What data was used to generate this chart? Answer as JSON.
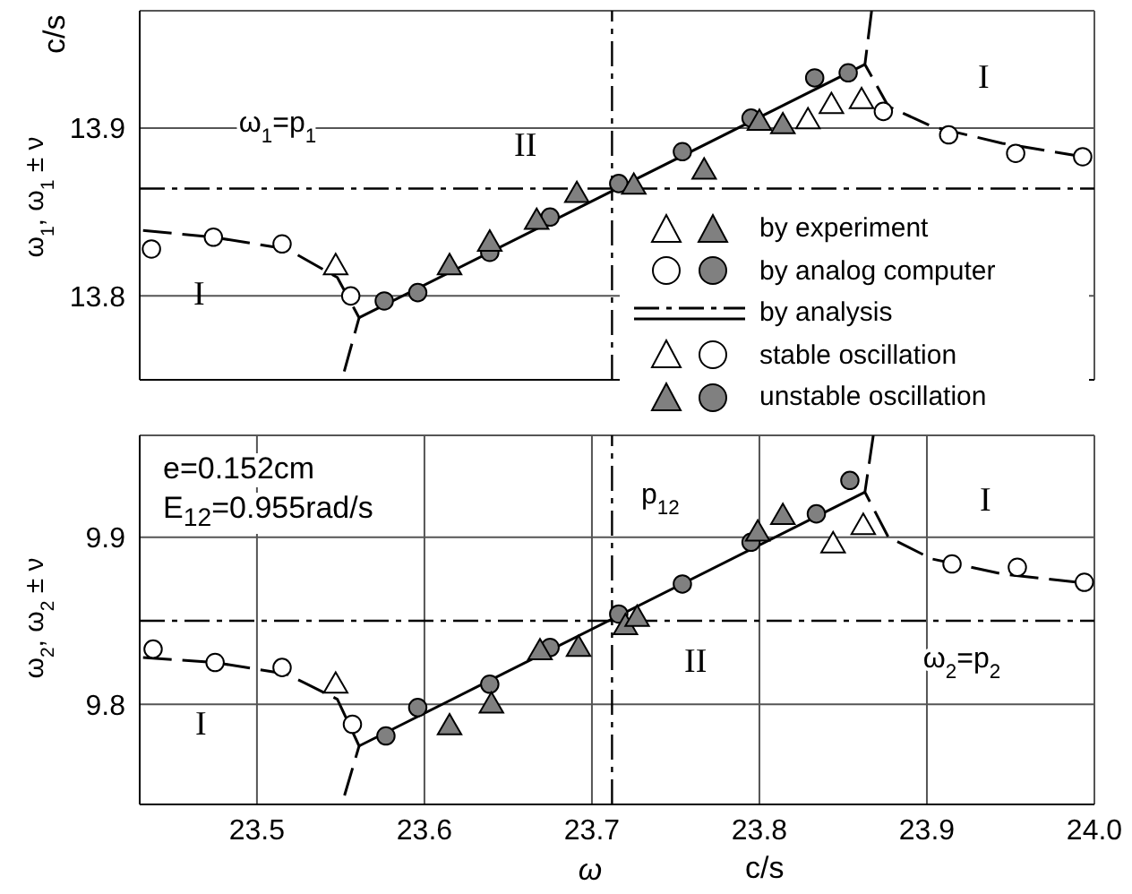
{
  "chart_data": [
    {
      "type": "scatter",
      "ylabel": "ω$_{1}$, ω$_{1}$ ± ν",
      "xlim": [
        23.43,
        24.0
      ],
      "xticks": [
        23.5,
        23.6,
        23.7,
        23.8,
        23.9
      ],
      "ylim": [
        13.75,
        13.97
      ],
      "yticks": [
        13.8,
        13.9
      ],
      "tick_labels": "y",
      "grid": true,
      "ref_lines": [
        {
          "axis": "y",
          "value": 13.864,
          "label": "ω$_{1}$=p$_{1}$",
          "line_style": "dashed"
        },
        {
          "axis": "x",
          "value": 23.712,
          "line_style": "dashed"
        }
      ],
      "annotations": [
        "by experiment",
        "by analog computer",
        "by analysis",
        "stable oscillation",
        "unstable oscillation",
        "c/s",
        "I",
        "II",
        "I"
      ],
      "series": [
        {
          "type": "scatter",
          "marker": "circle",
          "color": "#ffffff",
          "x": [
            23.437,
            23.474,
            23.515,
            23.556,
            23.874,
            23.913,
            23.953,
            23.993
          ],
          "values": [
            13.828,
            13.835,
            13.831,
            13.8,
            13.91,
            13.896,
            13.885,
            13.883
          ]
        },
        {
          "type": "scatter",
          "marker": "circle",
          "color": "#808080",
          "x": [
            23.576,
            23.596,
            23.639,
            23.675,
            23.716,
            23.754,
            23.795,
            23.833,
            23.853
          ],
          "values": [
            13.797,
            13.802,
            13.826,
            13.847,
            13.867,
            13.886,
            13.906,
            13.93,
            13.933
          ]
        },
        {
          "type": "scatter",
          "marker": "triangle",
          "color": "#ffffff",
          "x": [
            23.547,
            23.829,
            23.843,
            23.861
          ],
          "values": [
            13.817,
            13.904,
            13.913,
            13.916
          ]
        },
        {
          "type": "scatter",
          "marker": "triangle",
          "color": "#808080",
          "x": [
            23.615,
            23.639,
            23.667,
            23.691,
            23.725,
            23.767,
            23.8,
            23.814
          ],
          "values": [
            13.817,
            13.831,
            13.844,
            13.86,
            13.865,
            13.874,
            13.903,
            13.901
          ]
        },
        {
          "type": "line",
          "marker": "none",
          "line_style": "solid",
          "color": "#000000",
          "x": [
            23.561,
            23.863
          ],
          "values": [
            13.787,
            13.938
          ]
        },
        {
          "type": "line",
          "marker": "none",
          "line_style": "dashed",
          "color": "#000000",
          "x": [
            23.432,
            23.474,
            23.518,
            23.548,
            23.561,
            23.551
          ],
          "values": [
            13.839,
            13.835,
            13.828,
            13.811,
            13.787,
            13.751
          ]
        },
        {
          "type": "line",
          "marker": "none",
          "line_style": "dashed",
          "color": "#000000",
          "x": [
            23.867,
            23.863,
            23.877,
            23.903,
            23.945,
            23.999
          ],
          "values": [
            13.97,
            13.938,
            13.913,
            13.901,
            13.891,
            13.882
          ]
        }
      ]
    },
    {
      "type": "scatter",
      "ylabel": "ω$_{2}$, ω$_{2}$ ± ν",
      "xlabel": "ω",
      "xlim": [
        23.43,
        24.0
      ],
      "xticks": [
        23.5,
        23.6,
        23.7,
        23.8,
        23.9,
        {
          "value": 24,
          "label": "24.0"
        }
      ],
      "ylim": [
        9.74,
        9.961
      ],
      "yticks": [
        9.8,
        9.9
      ],
      "grid": true,
      "ref_lines": [
        {
          "axis": "x",
          "value": 23.712,
          "label": "p$_{12}$",
          "line_style": "dashed"
        },
        {
          "axis": "y",
          "value": 9.85,
          "label": "ω$_{2}$=p$_{2}$",
          "line_style": "dashed"
        }
      ],
      "annotations": [
        "e=0.152cm",
        "E$_{12}$=0.955rad/s",
        "c/s",
        "I",
        "II",
        "I"
      ],
      "series": [
        {
          "type": "scatter",
          "marker": "circle",
          "color": "#ffffff",
          "x": [
            23.438,
            23.475,
            23.515,
            23.557,
            23.915,
            23.954,
            23.994
          ],
          "values": [
            9.833,
            9.825,
            9.822,
            9.788,
            9.884,
            9.882,
            9.873
          ]
        },
        {
          "type": "scatter",
          "marker": "circle",
          "color": "#808080",
          "x": [
            23.577,
            23.596,
            23.639,
            23.675,
            23.716,
            23.754,
            23.795,
            23.834,
            23.854
          ],
          "values": [
            9.781,
            9.798,
            9.812,
            9.834,
            9.854,
            9.872,
            9.897,
            9.914,
            9.934
          ]
        },
        {
          "type": "scatter",
          "marker": "triangle",
          "color": "#ffffff",
          "x": [
            23.547,
            23.844,
            23.862
          ],
          "values": [
            9.811,
            9.895,
            9.906
          ]
        },
        {
          "type": "scatter",
          "marker": "triangle",
          "color": "#808080",
          "x": [
            23.615,
            23.64,
            23.669,
            23.692,
            23.72,
            23.727,
            23.799,
            23.814
          ],
          "values": [
            9.786,
            9.799,
            9.831,
            9.833,
            9.846,
            9.851,
            9.902,
            9.912
          ]
        },
        {
          "type": "line",
          "marker": "none",
          "line_style": "solid",
          "color": "#000000",
          "x": [
            23.561,
            23.863
          ],
          "values": [
            9.775,
            9.927
          ]
        },
        {
          "type": "line",
          "marker": "none",
          "line_style": "dashed",
          "color": "#000000",
          "x": [
            23.432,
            23.475,
            23.518,
            23.548,
            23.561,
            23.551
          ],
          "values": [
            9.828,
            9.825,
            9.818,
            9.803,
            9.775,
            9.741
          ]
        },
        {
          "type": "line",
          "marker": "none",
          "line_style": "dashed",
          "color": "#000000",
          "x": [
            23.868,
            23.863,
            23.877,
            23.903,
            23.945,
            23.999
          ],
          "values": [
            9.961,
            9.927,
            9.9,
            9.887,
            9.878,
            9.872
          ]
        }
      ]
    }
  ]
}
